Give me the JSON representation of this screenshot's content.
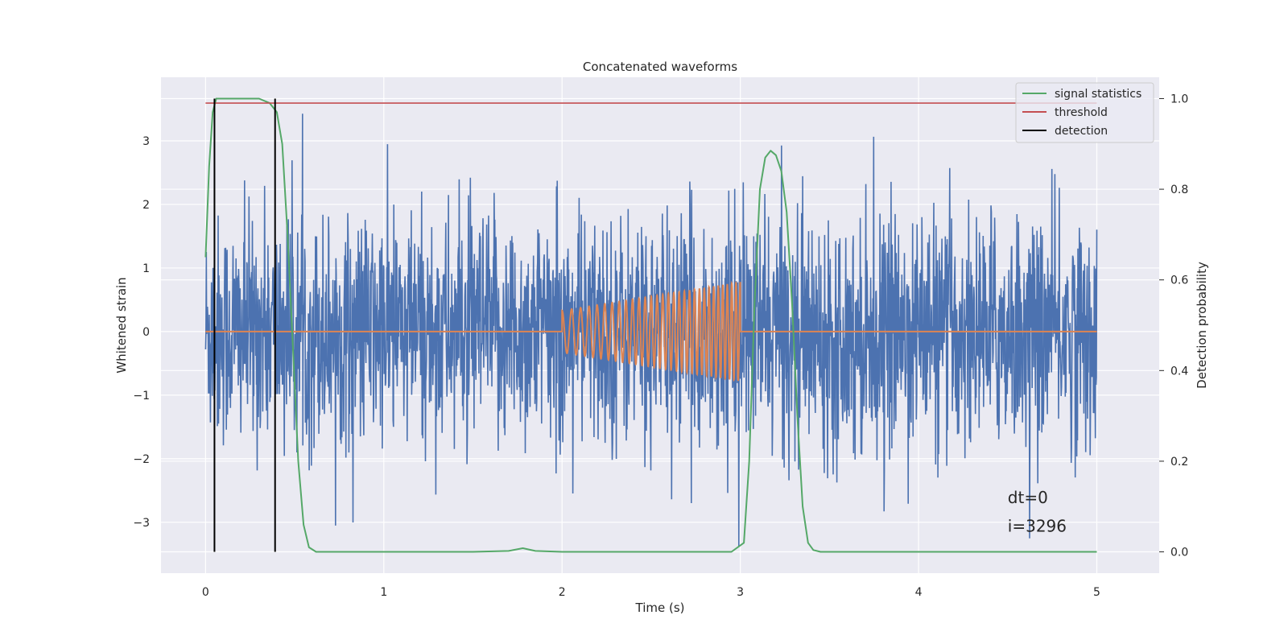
{
  "chart_data": {
    "type": "line",
    "title": "Concatenated waveforms",
    "xlabel": "Time (s)",
    "ylabel": "Whitened strain",
    "y2label": "Detection probability",
    "xlim": [
      -0.25,
      5.35
    ],
    "ylim": [
      -3.8,
      4.0
    ],
    "y2lim": [
      -0.047,
      1.047
    ],
    "xticks": [
      0,
      1,
      2,
      3,
      4,
      5
    ],
    "xtick_labels": [
      "0",
      "1",
      "2",
      "3",
      "4",
      "5"
    ],
    "yticks": [
      -3,
      -2,
      -1,
      0,
      1,
      2,
      3
    ],
    "ytick_labels": [
      "−3",
      "−2",
      "−1",
      "0",
      "1",
      "2",
      "3"
    ],
    "y2ticks": [
      0.0,
      0.2,
      0.4,
      0.6,
      0.8,
      1.0
    ],
    "y2tick_labels": [
      "0.0",
      "0.2",
      "0.4",
      "0.6",
      "0.8",
      "1.0"
    ],
    "grid": true,
    "legend_position": "top-right",
    "colors": {
      "noise": "#4c72b0",
      "template": "#dd8452",
      "signal_statistics": "#55a868",
      "threshold": "#c44e52",
      "detection": "#000000",
      "axes_bg": "#eaeaf2",
      "grid": "#ffffff"
    },
    "series": [
      {
        "name": "whitened strain (noise)",
        "axis": "left",
        "kind": "noise",
        "t_start": 0,
        "t_end": 5,
        "std": 0.9,
        "min": -3.5,
        "max": 3.6
      },
      {
        "name": "chirp template",
        "axis": "left",
        "kind": "chirp",
        "t_start": 2.0,
        "t_end": 3.0,
        "amp_start": 0.33,
        "amp_end": 0.78,
        "cycles": 30
      },
      {
        "name": "signal statistics",
        "axis": "right",
        "x": [
          0,
          0.02,
          0.04,
          0.06,
          0.1,
          0.2,
          0.3,
          0.36,
          0.4,
          0.43,
          0.46,
          0.49,
          0.52,
          0.55,
          0.58,
          0.62,
          0.7,
          1.0,
          1.5,
          1.7,
          1.78,
          1.85,
          2.0,
          2.5,
          2.95,
          3.02,
          3.05,
          3.08,
          3.11,
          3.14,
          3.17,
          3.2,
          3.23,
          3.26,
          3.29,
          3.32,
          3.35,
          3.38,
          3.41,
          3.45,
          3.6,
          4.0,
          4.5,
          5.0
        ],
        "y": [
          0.65,
          0.85,
          0.97,
          1.0,
          1.0,
          1.0,
          1.0,
          0.99,
          0.97,
          0.9,
          0.7,
          0.45,
          0.2,
          0.06,
          0.01,
          0.0,
          0.0,
          0.0,
          0.0,
          0.002,
          0.008,
          0.002,
          0.0,
          0.0,
          0.0,
          0.02,
          0.2,
          0.55,
          0.8,
          0.87,
          0.885,
          0.875,
          0.84,
          0.75,
          0.55,
          0.3,
          0.1,
          0.02,
          0.004,
          0.0,
          0.0,
          0.0,
          0.0,
          0.0
        ]
      },
      {
        "name": "threshold",
        "axis": "right",
        "x": [
          0,
          5
        ],
        "y": [
          0.99,
          0.99
        ]
      },
      {
        "name": "detection",
        "axis": "right",
        "kind": "vlines",
        "x": [
          0.05,
          0.39
        ],
        "ymin": 0.0,
        "ymax": 1.0
      }
    ],
    "legend": [
      "signal statistics",
      "threshold",
      "detection"
    ],
    "annotations": [
      {
        "text": "dt=0",
        "x": 4.5,
        "y": -2.7
      },
      {
        "text": "i=3296",
        "x": 4.5,
        "y": -3.15
      }
    ]
  }
}
